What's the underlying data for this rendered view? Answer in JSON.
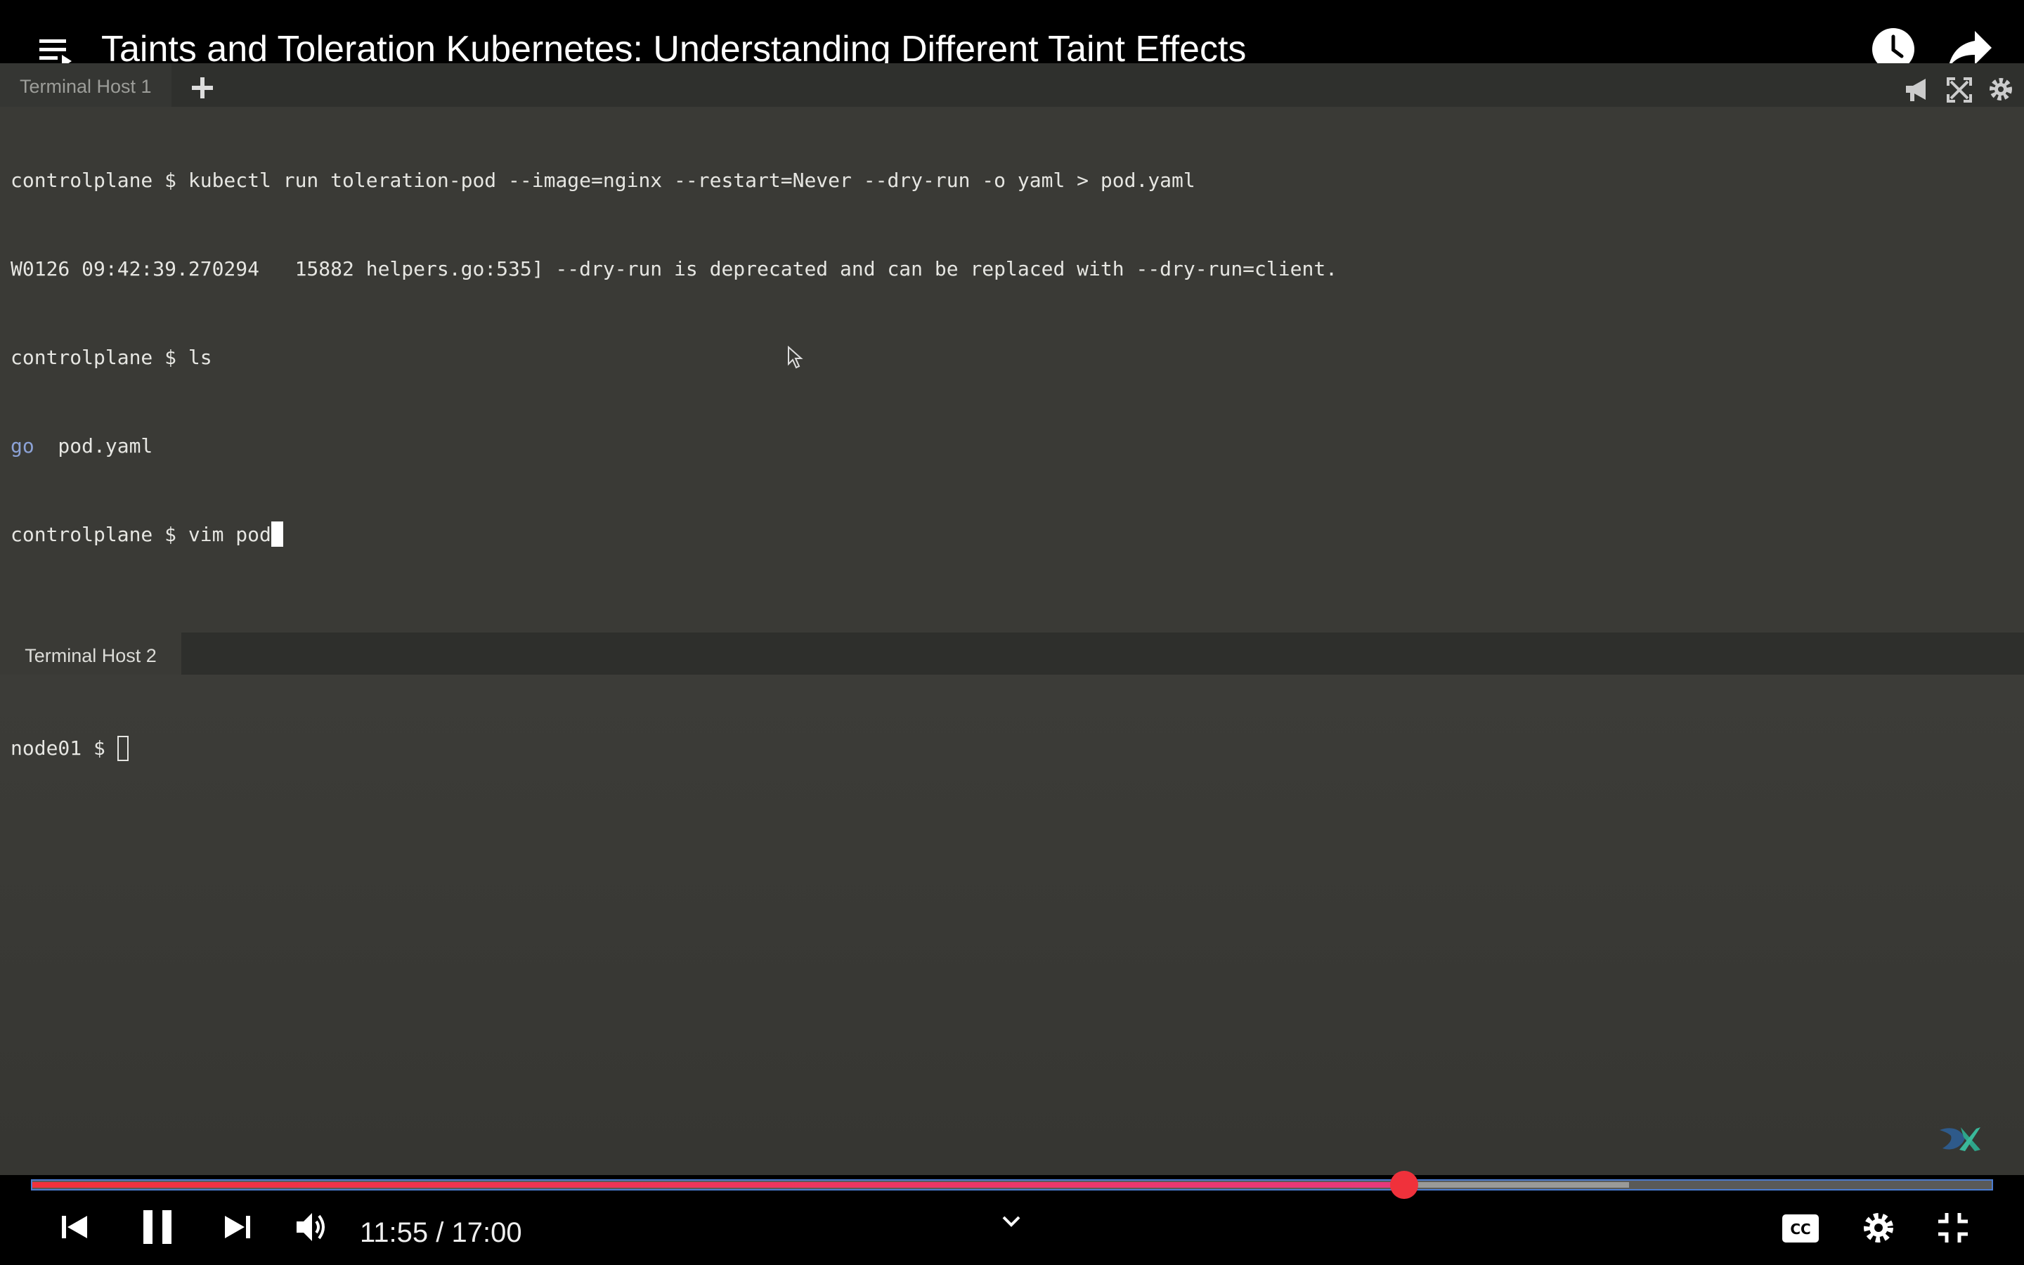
{
  "video": {
    "title": "Taints and Toleration Kubernetes: Understanding Different Taint Effects",
    "current_time": "11:55",
    "duration": "17:00",
    "time_text": "11:55 / 17:00",
    "progress_fraction": 0.7,
    "buffered_fraction": 0.815
  },
  "terminal1": {
    "tab_label": "Terminal Host 1",
    "lines": [
      "controlplane $ kubectl run toleration-pod --image=nginx --restart=Never --dry-run -o yaml > pod.yaml",
      "W0126 09:42:39.270294   15882 helpers.go:535] --dry-run is deprecated and can be replaced with --dry-run=client.",
      "controlplane $ ls"
    ],
    "ls_dir": "go",
    "ls_file": "  pod.yaml",
    "current_prompt": "controlplane $ vim pod"
  },
  "terminal2": {
    "tab_label": "Terminal Host 2",
    "prompt": "node01 $ "
  },
  "colors": {
    "progress": "#f0313b",
    "terminal_bg": "#3a3a36",
    "dir_color": "#8ca2d6"
  },
  "icons": [
    "playlist-icon",
    "clock-icon",
    "share-icon",
    "plus-icon",
    "announce-icon",
    "expand-icon",
    "settings-icon",
    "previous-icon",
    "pause-icon",
    "next-icon",
    "volume-icon",
    "chevron-down-icon",
    "captions-icon",
    "gear-icon",
    "exit-fullscreen-icon"
  ]
}
